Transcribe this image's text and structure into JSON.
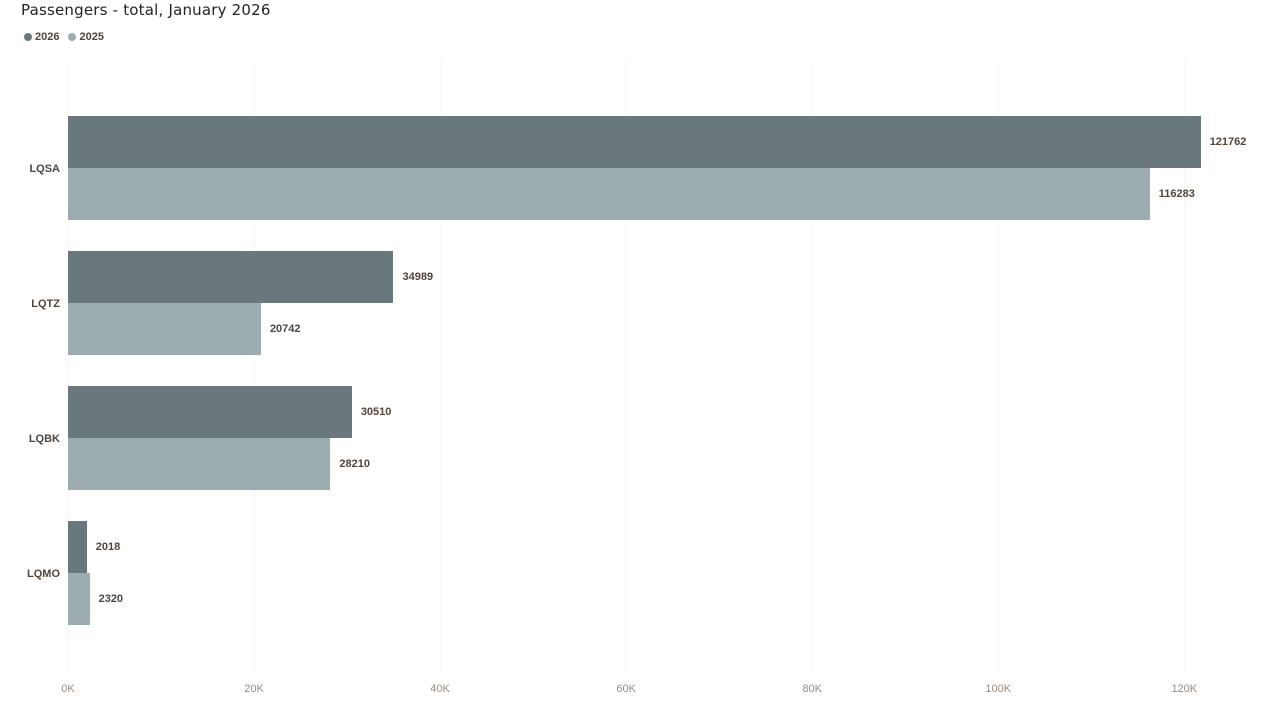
{
  "chart_data": {
    "type": "bar",
    "orientation": "horizontal",
    "title": "Passengers - total, January 2026",
    "categories": [
      "LQSA",
      "LQTZ",
      "LQBK",
      "LQMO"
    ],
    "series": [
      {
        "name": "2026",
        "color": "#6a787e",
        "values": [
          121762,
          34989,
          30510,
          2018
        ]
      },
      {
        "name": "2025",
        "color": "#9cacb1",
        "values": [
          116283,
          20742,
          28210,
          2320
        ]
      }
    ],
    "value_labels": true,
    "x_ticks": [
      {
        "value": 0,
        "label": "0K"
      },
      {
        "value": 20000,
        "label": "20K"
      },
      {
        "value": 40000,
        "label": "40K"
      },
      {
        "value": 60000,
        "label": "60K"
      },
      {
        "value": 80000,
        "label": "80K"
      },
      {
        "value": 100000,
        "label": "100K"
      },
      {
        "value": 120000,
        "label": "120K"
      }
    ],
    "xlim": [
      0,
      127600
    ],
    "grid": "dotted-vertical",
    "legend_position": "top-left"
  },
  "colors": {
    "series_2026": "#6a787e",
    "series_2025": "#9cacb1",
    "title_text": "#252423",
    "data_label_text": "#51443a",
    "axis_tick_text": "#9a8c7f",
    "gridline": "#e2dfdb",
    "background": "#ffffff"
  }
}
